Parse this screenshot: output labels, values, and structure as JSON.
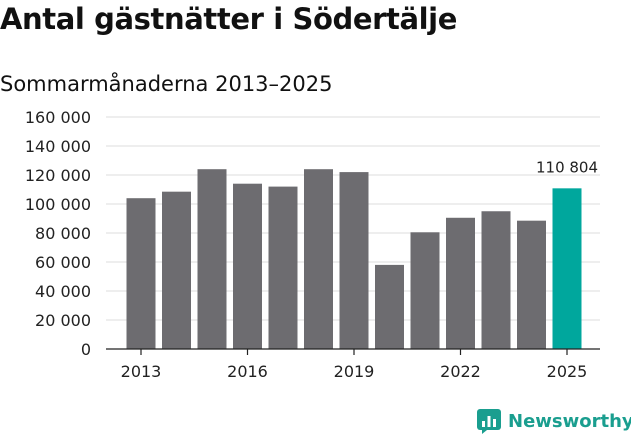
{
  "title": "Antal gästnätter i Södertälje",
  "subtitle": "Sommarmånaderna 2013–2025",
  "brand": "Newsworthy",
  "colors": {
    "bar": "#6d6c70",
    "highlight": "#00a79d",
    "grid": "#dddddd",
    "text": "#222222",
    "brand": "#1a9e8f"
  },
  "icons": {
    "brand": "bar-chart-icon"
  },
  "chart_data": {
    "type": "bar",
    "title": "Antal gästnätter i Södertälje",
    "subtitle": "Sommarmånaderna 2013–2025",
    "categories": [
      "2013",
      "2014",
      "2015",
      "2016",
      "2017",
      "2018",
      "2019",
      "2020",
      "2021",
      "2022",
      "2023",
      "2024",
      "2025"
    ],
    "values": [
      104000,
      108500,
      124000,
      114000,
      112000,
      124000,
      122000,
      58000,
      80500,
      90500,
      95000,
      88500,
      110804
    ],
    "highlight_index": 12,
    "annotation": {
      "category": "2025",
      "label": "110 804"
    },
    "x_tick_labels": [
      "2013",
      "2016",
      "2019",
      "2022",
      "2025"
    ],
    "y_tick_labels": [
      "0",
      "20 000",
      "40 000",
      "60 000",
      "80 000",
      "100 000",
      "120 000",
      "140 000",
      "160 000"
    ],
    "y_ticks": [
      0,
      20000,
      40000,
      60000,
      80000,
      100000,
      120000,
      140000,
      160000
    ],
    "ylim": [
      0,
      160000
    ],
    "grid": true,
    "legend": "none"
  }
}
